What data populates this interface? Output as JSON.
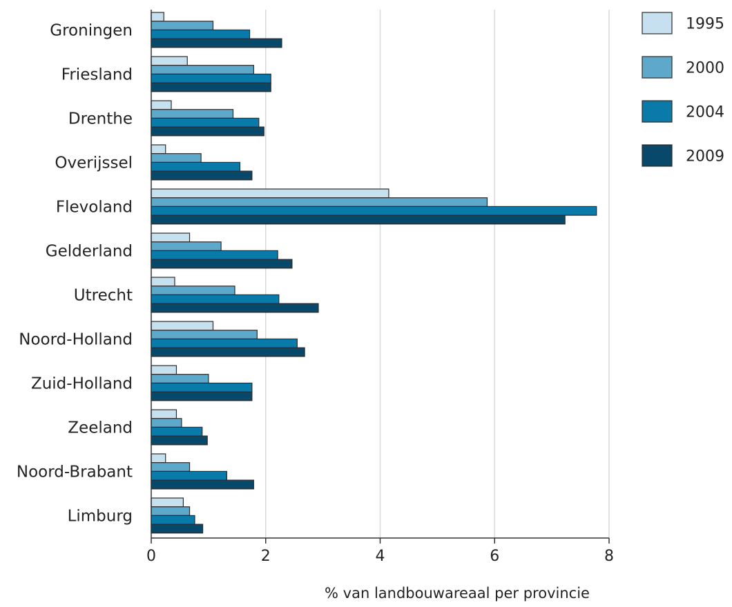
{
  "chart_data": {
    "type": "bar",
    "orientation": "horizontal",
    "title": "",
    "xlabel": "% van landbouwareaal per provincie",
    "ylabel": "",
    "xlim": [
      0,
      8
    ],
    "x_ticks": [
      0,
      2,
      4,
      6,
      8
    ],
    "x_tick_labels": [
      "0",
      "2",
      "4",
      "6",
      "8"
    ],
    "grid": true,
    "legend_position": "top-right",
    "categories": [
      "Groningen",
      "Friesland",
      "Drenthe",
      "Overijssel",
      "Flevoland",
      "Gelderland",
      "Utrecht",
      "Noord-Holland",
      "Zuid-Holland",
      "Zeeland",
      "Noord-Brabant",
      "Limburg"
    ],
    "series": [
      {
        "name": "1995",
        "color": "#c6e0ef",
        "values": [
          0.22,
          0.63,
          0.35,
          0.25,
          4.15,
          0.67,
          0.41,
          1.08,
          0.44,
          0.44,
          0.25,
          0.56
        ]
      },
      {
        "name": "2000",
        "color": "#5ea8cc",
        "values": [
          1.08,
          1.79,
          1.43,
          0.87,
          5.87,
          1.22,
          1.46,
          1.85,
          1.0,
          0.53,
          0.67,
          0.67
        ]
      },
      {
        "name": "2004",
        "color": "#0a7aaa",
        "values": [
          1.72,
          2.09,
          1.88,
          1.55,
          7.78,
          2.21,
          2.23,
          2.55,
          1.76,
          0.89,
          1.32,
          0.76
        ]
      },
      {
        "name": "2009",
        "color": "#07486b",
        "values": [
          2.28,
          2.09,
          1.97,
          1.76,
          7.23,
          2.46,
          2.92,
          2.68,
          1.76,
          0.98,
          1.79,
          0.9
        ]
      }
    ]
  }
}
